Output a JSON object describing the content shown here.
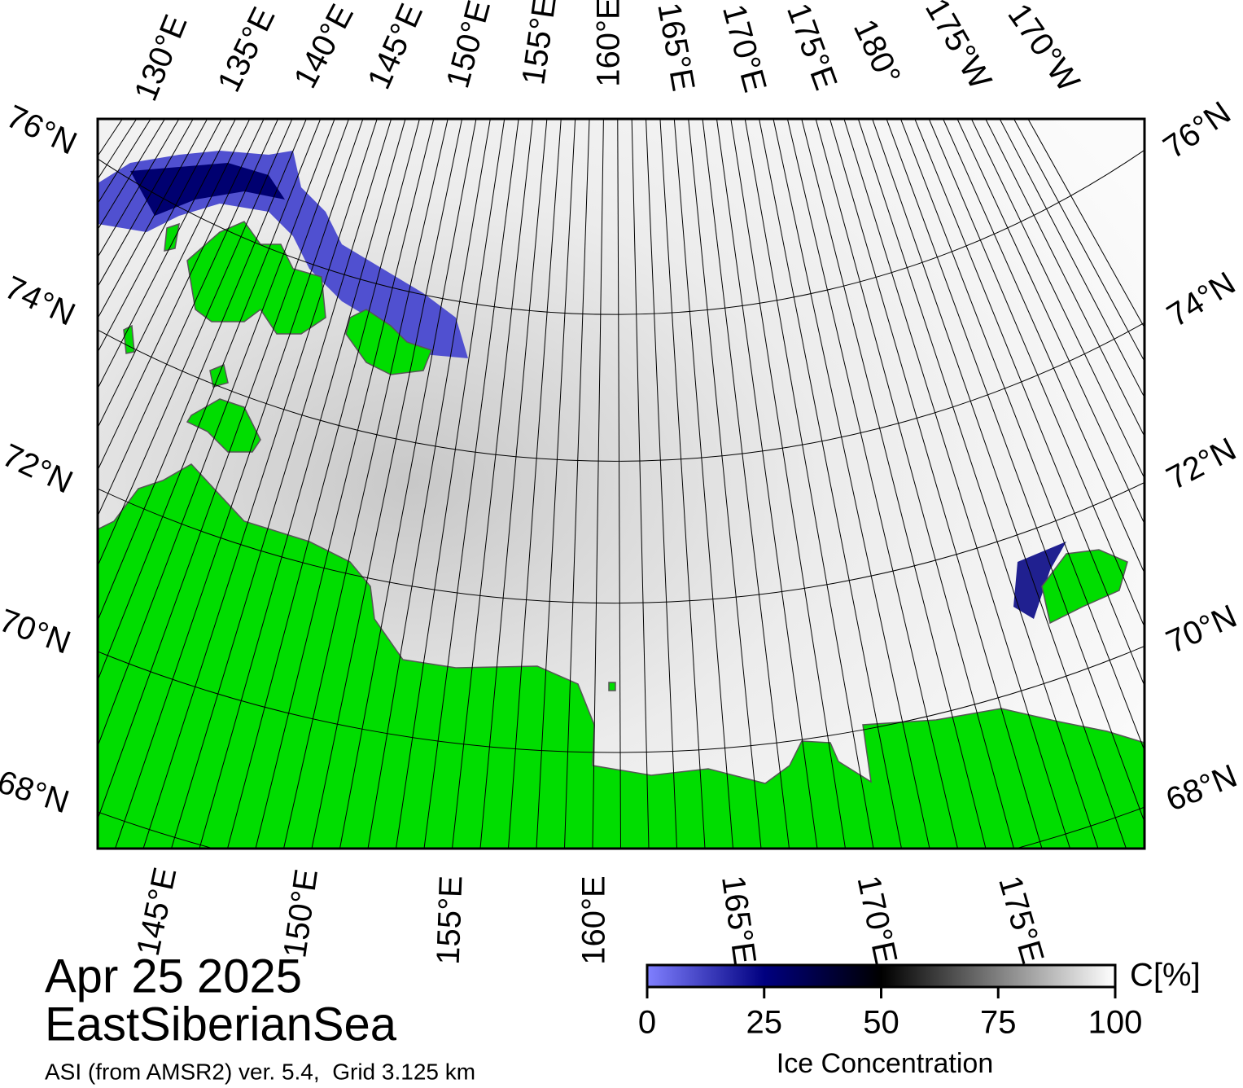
{
  "map": {
    "top_longitude_labels": [
      "130°E",
      "135°E",
      "140°E",
      "145°E",
      "150°E",
      "155°E",
      "160°E",
      "165°E",
      "170°E",
      "175°E",
      "180°",
      "175°W",
      "170°W"
    ],
    "left_latitude_labels": [
      "76°N",
      "74°N",
      "72°N",
      "70°N",
      "68°N"
    ],
    "right_latitude_labels": [
      "76°N",
      "74°N",
      "72°N",
      "70°N",
      "68°N"
    ],
    "bottom_longitude_labels": [
      "145°E",
      "150°E",
      "155°E",
      "160°E",
      "165°E",
      "170°E",
      "175°E"
    ]
  },
  "date": "Apr 25 2025",
  "region": "EastSiberianSea",
  "source": "ASI (from AMSR2) ver. 5.4,  Grid 3.125 km",
  "colorbar": {
    "lim": [
      0,
      100
    ],
    "ticks": [
      0,
      25,
      50,
      75,
      100
    ],
    "unit": "C[%]",
    "label": "Ice Concentration"
  }
}
